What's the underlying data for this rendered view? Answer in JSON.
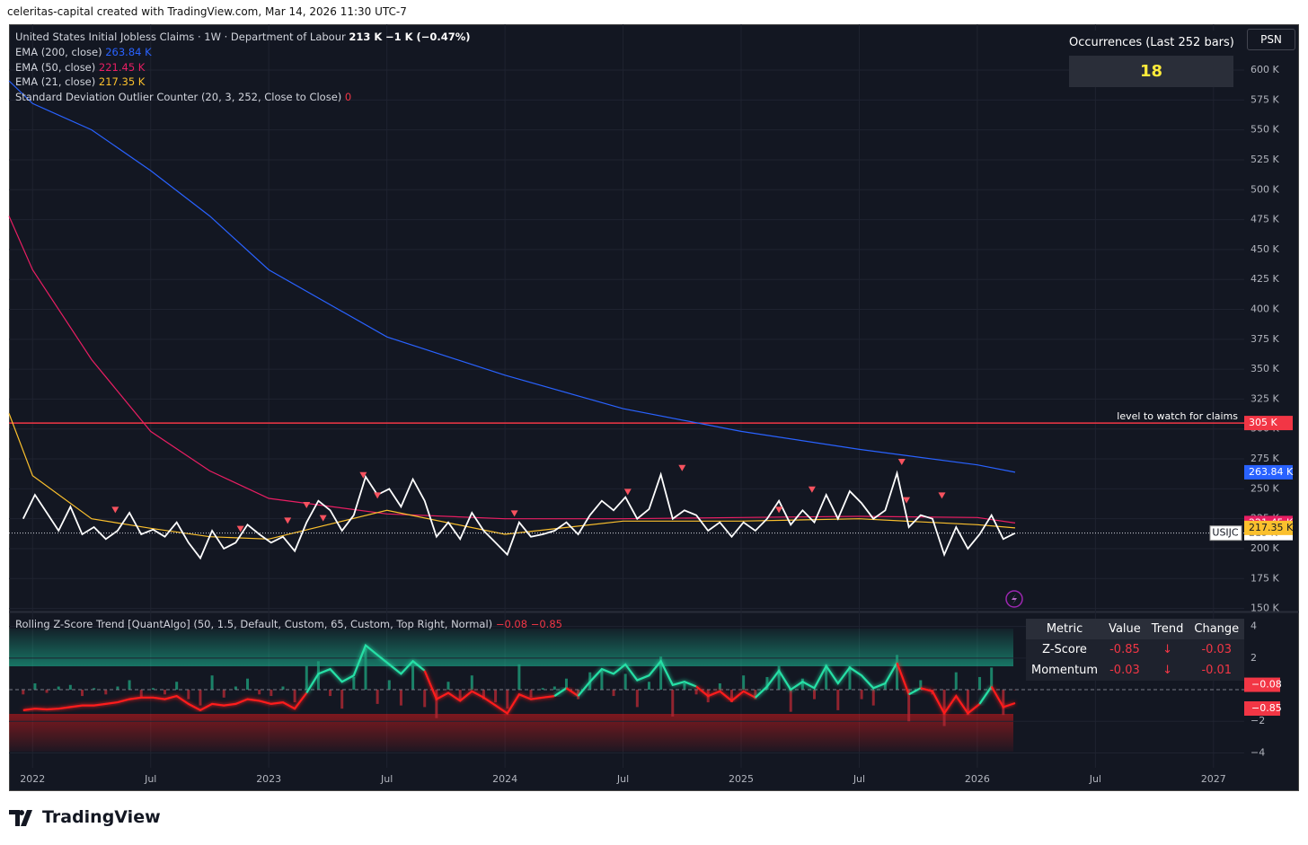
{
  "header": {
    "attribution": "celeritas-capital created with TradingView.com, Mar 14, 2026 11:30 UTC-7",
    "button": "PSN"
  },
  "footer": {
    "brand": "TradingView"
  },
  "panel": {
    "title": "Occurrences (Last 252 bars)",
    "value": "18"
  },
  "legend": [
    {
      "label": "United States Initial Jobless Claims · 1W · Department of Labour",
      "value": "213 K",
      "change": "−1 K (−0.47%)"
    },
    {
      "label": "EMA (200, close)",
      "value": "263.84 K"
    },
    {
      "label": "EMA (50, close)",
      "value": "221.45 K"
    },
    {
      "label": "EMA (21, close)",
      "value": "217.35 K"
    },
    {
      "label": "Standard Deviation Outlier Counter (20, 3, 252, Close to Close)",
      "value": "0"
    }
  ],
  "chart_data": [
    {
      "type": "line",
      "xlim": [
        2021.9,
        2027.13
      ],
      "xticks": [
        {
          "value": 2022,
          "label": "2022"
        },
        {
          "value": 2022.5,
          "label": "Jul"
        },
        {
          "value": 2023,
          "label": "2023"
        },
        {
          "value": 2023.5,
          "label": "Jul"
        },
        {
          "value": 2024,
          "label": "2024"
        },
        {
          "value": 2024.5,
          "label": "Jul"
        },
        {
          "value": 2025,
          "label": "2025"
        },
        {
          "value": 2025.5,
          "label": "Jul"
        },
        {
          "value": 2026,
          "label": "2026"
        },
        {
          "value": 2026.5,
          "label": "Jul"
        },
        {
          "value": 2027,
          "label": "2027"
        }
      ],
      "ylim": [
        148.2,
        638.3
      ],
      "yticks": [
        {
          "value": 150,
          "label": "150 K"
        },
        {
          "value": 175,
          "label": "175 K"
        },
        {
          "value": 200,
          "label": "200 K"
        },
        {
          "value": 225,
          "label": "225 K"
        },
        {
          "value": 250,
          "label": "250 K"
        },
        {
          "value": 275,
          "label": "275 K"
        },
        {
          "value": 300,
          "label": "300 K"
        },
        {
          "value": 325,
          "label": "325 K"
        },
        {
          "value": 350,
          "label": "350 K"
        },
        {
          "value": 375,
          "label": "375 K"
        },
        {
          "value": 400,
          "label": "400 K"
        },
        {
          "value": 425,
          "label": "425 K"
        },
        {
          "value": 450,
          "label": "450 K"
        },
        {
          "value": 475,
          "label": "475 K"
        },
        {
          "value": 500,
          "label": "500 K"
        },
        {
          "value": 525,
          "label": "525 K"
        },
        {
          "value": 550,
          "label": "550 K"
        },
        {
          "value": 575,
          "label": "575 K"
        },
        {
          "value": 600,
          "label": "600 K"
        }
      ],
      "grid": true,
      "series": [
        {
          "name": "USIJC",
          "color": "#ffffff",
          "last_label": "213 K",
          "x": [
            2021.96,
            2022.01,
            2022.06,
            2022.11,
            2022.16,
            2022.21,
            2022.26,
            2022.31,
            2022.36,
            2022.41,
            2022.46,
            2022.51,
            2022.56,
            2022.61,
            2022.66,
            2022.71,
            2022.76,
            2022.81,
            2022.86,
            2022.91,
            2022.96,
            2023.01,
            2023.06,
            2023.11,
            2023.16,
            2023.21,
            2023.26,
            2023.31,
            2023.36,
            2023.41,
            2023.46,
            2023.51,
            2023.56,
            2023.61,
            2023.66,
            2023.71,
            2023.76,
            2023.81,
            2023.86,
            2023.91,
            2023.96,
            2024.01,
            2024.06,
            2024.11,
            2024.16,
            2024.21,
            2024.26,
            2024.31,
            2024.36,
            2024.41,
            2024.46,
            2024.51,
            2024.56,
            2024.61,
            2024.66,
            2024.71,
            2024.76,
            2024.81,
            2024.86,
            2024.91,
            2024.96,
            2025.01,
            2025.06,
            2025.11,
            2025.16,
            2025.21,
            2025.26,
            2025.31,
            2025.36,
            2025.41,
            2025.46,
            2025.51,
            2025.56,
            2025.61,
            2025.66,
            2025.71,
            2025.76,
            2025.81,
            2025.86,
            2025.91,
            2025.96,
            2026.01,
            2026.06,
            2026.11,
            2026.16
          ],
          "values": [
            225,
            245,
            230,
            215,
            235,
            212,
            218,
            208,
            215,
            230,
            212,
            216,
            210,
            222,
            205,
            192,
            215,
            200,
            205,
            220,
            212,
            205,
            210,
            198,
            222,
            240,
            232,
            215,
            228,
            260,
            245,
            250,
            235,
            258,
            240,
            210,
            222,
            208,
            230,
            215,
            205,
            195,
            222,
            210,
            212,
            215,
            222,
            212,
            228,
            240,
            232,
            243,
            225,
            233,
            262,
            225,
            232,
            228,
            215,
            222,
            210,
            222,
            215,
            225,
            240,
            220,
            232,
            222,
            245,
            225,
            248,
            238,
            225,
            232,
            263,
            218,
            228,
            225,
            195,
            218,
            200,
            212,
            228,
            208,
            213
          ]
        },
        {
          "name": "EMA (200, close)",
          "color": "#2962ff",
          "last_label": "263.84 K",
          "x": [
            2021.9,
            2022.0,
            2022.25,
            2022.5,
            2022.75,
            2023.0,
            2023.5,
            2024.0,
            2024.5,
            2025.0,
            2025.5,
            2026.0,
            2026.16
          ],
          "values": [
            591,
            572,
            550,
            516,
            478,
            433,
            377,
            345,
            317,
            298,
            283,
            270,
            263.84
          ]
        },
        {
          "name": "EMA (50, close)",
          "color": "#e91e63",
          "last_label": "221.45 K",
          "x": [
            2021.9,
            2022.0,
            2022.25,
            2022.5,
            2022.75,
            2023.0,
            2023.5,
            2024.0,
            2024.5,
            2025.0,
            2025.5,
            2026.0,
            2026.16
          ],
          "values": [
            478,
            433,
            358,
            298,
            265,
            242,
            229,
            225,
            225,
            226,
            227,
            226,
            221.45
          ]
        },
        {
          "name": "EMA (21, close)",
          "color": "#fbc02d",
          "last_label": "217.35 K",
          "x": [
            2021.9,
            2022.0,
            2022.25,
            2022.5,
            2022.75,
            2023.0,
            2023.5,
            2024.0,
            2024.5,
            2025.0,
            2025.5,
            2026.0,
            2026.16
          ],
          "values": [
            313,
            261,
            225,
            217,
            210,
            208,
            232,
            212,
            223,
            223,
            225,
            220,
            217.35
          ]
        }
      ],
      "outliers": {
        "color": "#f7525f",
        "x": [
          2022.35,
          2022.88,
          2023.08,
          2023.16,
          2023.23,
          2023.4,
          2023.46,
          2024.04,
          2024.52,
          2024.75,
          2025.16,
          2025.3,
          2025.68,
          2025.7,
          2025.85
        ],
        "values": [
          232,
          216,
          223,
          236,
          225,
          261,
          244,
          229,
          247,
          267,
          232,
          249,
          272,
          240,
          244
        ]
      },
      "hline": {
        "value": 305,
        "label": "level to watch for claims",
        "value_label": "305 K",
        "color": "#f23645"
      }
    },
    {
      "type": "line",
      "title": "Rolling Z-Score Trend [QuantAlgo] (50, 1.5, Default, Custom, 65, Custom, Top Right, Normal)",
      "legend_values": [
        "−0.08",
        "−0.85"
      ],
      "ylim": [
        -4.94,
        4.83
      ],
      "yticks": [
        4,
        2,
        {
          "value": -2,
          "label": "−2"
        },
        {
          "value": -4,
          "label": "−4"
        }
      ],
      "axis_labels": [
        "−0.08",
        "−0.85"
      ],
      "series": [
        {
          "name": "Z-Score",
          "color": "#26e0a6",
          "negative_color": "#ff1a1a",
          "values": [
            -1.3,
            -1.2,
            -1.25,
            -1.2,
            -1.1,
            -1.0,
            -1.0,
            -0.9,
            -0.8,
            -0.6,
            -0.5,
            -0.5,
            -0.6,
            -0.4,
            -0.9,
            -1.3,
            -0.9,
            -1.0,
            -0.9,
            -0.6,
            -0.7,
            -0.9,
            -0.8,
            -1.2,
            -0.2,
            1.0,
            1.3,
            0.5,
            0.9,
            2.8,
            2.2,
            1.6,
            1.0,
            1.8,
            1.2,
            -0.6,
            -0.2,
            -0.7,
            -0.1,
            -0.5,
            -1.0,
            -1.5,
            -0.3,
            -0.6,
            -0.5,
            -0.4,
            0.1,
            -0.4,
            0.5,
            1.3,
            1.0,
            1.6,
            0.6,
            0.9,
            1.8,
            0.3,
            0.5,
            0.2,
            -0.4,
            -0.1,
            -0.7,
            -0.1,
            -0.5,
            0.2,
            1.2,
            0.0,
            0.5,
            0.1,
            1.5,
            0.4,
            1.4,
            0.9,
            0.1,
            0.4,
            1.7,
            -0.3,
            0.1,
            -0.1,
            -1.5,
            -0.4,
            -1.5,
            -0.9,
            0.2,
            -1.1,
            -0.85
          ]
        },
        {
          "name": "Momentum",
          "color": "#1e9e7a",
          "negative_color": "#b22833",
          "values": [
            -0.3,
            0.4,
            -0.2,
            0.2,
            0.3,
            -0.4,
            0.1,
            -0.3,
            0.2,
            0.6,
            -0.5,
            0.1,
            -0.3,
            0.5,
            -0.6,
            -1.0,
            0.9,
            -0.5,
            0.2,
            0.7,
            -0.3,
            -0.4,
            0.2,
            -0.8,
            1.5,
            1.8,
            -0.4,
            -1.2,
            0.8,
            2.6,
            -0.9,
            0.6,
            -1.0,
            1.5,
            -1.1,
            -1.8,
            0.5,
            -0.7,
            0.9,
            -0.6,
            -0.8,
            -1.2,
            1.6,
            -0.5,
            0.1,
            0.2,
            0.7,
            -0.6,
            1.1,
            1.2,
            -0.4,
            1.0,
            -1.1,
            0.5,
            2.1,
            -1.7,
            0.4,
            -0.3,
            -0.8,
            0.4,
            -0.8,
            0.9,
            -0.6,
            0.8,
            1.5,
            -1.4,
            0.7,
            -0.6,
            1.6,
            -1.3,
            1.5,
            -0.6,
            -1.0,
            0.4,
            2.2,
            -2.0,
            0.6,
            -0.3,
            -2.3,
            1.1,
            -1.6,
            0.8,
            1.4,
            -1.6,
            -0.03
          ]
        }
      ],
      "table": {
        "header": [
          "Metric",
          "Value",
          "Trend",
          "Change"
        ],
        "rows": [
          [
            "Z-Score",
            "-0.85",
            "↓",
            "-0.03"
          ],
          [
            "Momentum",
            "-0.03",
            "↓",
            "-0.01"
          ]
        ]
      }
    }
  ]
}
